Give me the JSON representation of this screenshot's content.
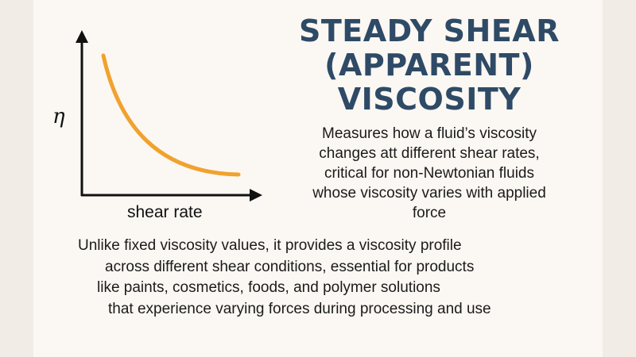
{
  "diagram": {
    "y_axis_label": "η",
    "x_axis_label": "shear rate",
    "curve_color": "#f0a22e",
    "axis_color": "#111111"
  },
  "title": {
    "lines": [
      "STEADY SHEAR",
      "(APPARENT)",
      "VISCOSITY"
    ]
  },
  "description": {
    "lines": [
      "Measures how a fluid’s viscosity",
      "changes att different shear rates,",
      "critical for non-Newtonian fluids",
      "whose viscosity varies with applied",
      "force"
    ]
  },
  "body": {
    "lines": [
      "Unlike fixed viscosity values, it provides a viscosity profile",
      "across different shear conditions, essential for products",
      "like paints, cosmetics, foods, and polymer solutions",
      "that experience varying forces during processing and use"
    ]
  }
}
